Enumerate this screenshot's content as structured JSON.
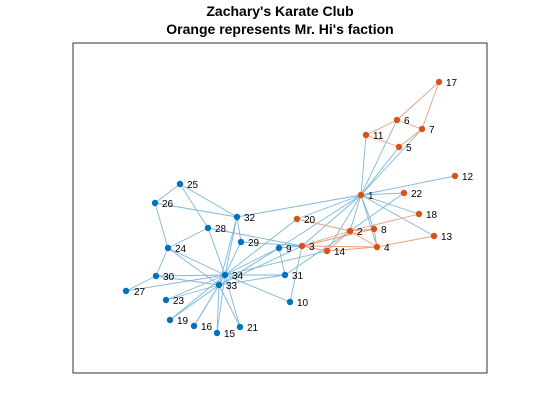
{
  "figure": {
    "title_line1": "Zachary's Karate Club",
    "title_line2": "Orange represents Mr. Hi's faction"
  },
  "colors": {
    "background": "#ffffff",
    "axes_border": "#000000",
    "edge_blue": "#7DB7DD",
    "edge_orange": "#E8A078",
    "node_blue": "#0072BD",
    "node_orange": "#D95319"
  },
  "chart_data": {
    "type": "network",
    "factions": {
      "orange": [
        1,
        2,
        3,
        4,
        5,
        6,
        7,
        8,
        11,
        12,
        13,
        14,
        17,
        18,
        20,
        22
      ],
      "blue": [
        9,
        10,
        15,
        16,
        19,
        21,
        23,
        24,
        25,
        26,
        27,
        28,
        29,
        30,
        31,
        32,
        33,
        34
      ]
    },
    "node_labels": [
      "17",
      "6",
      "7",
      "11",
      "5",
      "12",
      "22",
      "1",
      "18",
      "20",
      "2",
      "8",
      "13",
      "3",
      "9",
      "14",
      "4",
      "25",
      "26",
      "32",
      "28",
      "29",
      "24",
      "31",
      "30",
      "34",
      "27",
      "33",
      "10",
      "23",
      "19",
      "16",
      "21",
      "15"
    ],
    "edges": [
      [
        1,
        2
      ],
      [
        1,
        3
      ],
      [
        1,
        4
      ],
      [
        1,
        5
      ],
      [
        1,
        6
      ],
      [
        1,
        7
      ],
      [
        1,
        8
      ],
      [
        1,
        9
      ],
      [
        1,
        11
      ],
      [
        1,
        12
      ],
      [
        1,
        13
      ],
      [
        1,
        14
      ],
      [
        1,
        18
      ],
      [
        1,
        20
      ],
      [
        1,
        22
      ],
      [
        1,
        32
      ],
      [
        2,
        3
      ],
      [
        2,
        4
      ],
      [
        2,
        8
      ],
      [
        2,
        14
      ],
      [
        2,
        18
      ],
      [
        2,
        20
      ],
      [
        2,
        22
      ],
      [
        2,
        31
      ],
      [
        3,
        4
      ],
      [
        3,
        8
      ],
      [
        3,
        9
      ],
      [
        3,
        10
      ],
      [
        3,
        14
      ],
      [
        3,
        28
      ],
      [
        3,
        29
      ],
      [
        3,
        33
      ],
      [
        4,
        8
      ],
      [
        4,
        13
      ],
      [
        4,
        14
      ],
      [
        5,
        7
      ],
      [
        5,
        11
      ],
      [
        6,
        7
      ],
      [
        6,
        11
      ],
      [
        6,
        17
      ],
      [
        7,
        17
      ],
      [
        9,
        31
      ],
      [
        9,
        33
      ],
      [
        9,
        34
      ],
      [
        10,
        34
      ],
      [
        14,
        34
      ],
      [
        15,
        33
      ],
      [
        15,
        34
      ],
      [
        16,
        33
      ],
      [
        16,
        34
      ],
      [
        19,
        33
      ],
      [
        19,
        34
      ],
      [
        20,
        34
      ],
      [
        21,
        33
      ],
      [
        21,
        34
      ],
      [
        23,
        33
      ],
      [
        23,
        34
      ],
      [
        24,
        26
      ],
      [
        24,
        28
      ],
      [
        24,
        30
      ],
      [
        24,
        33
      ],
      [
        24,
        34
      ],
      [
        25,
        26
      ],
      [
        25,
        28
      ],
      [
        25,
        32
      ],
      [
        26,
        32
      ],
      [
        27,
        30
      ],
      [
        27,
        34
      ],
      [
        28,
        34
      ],
      [
        29,
        32
      ],
      [
        29,
        34
      ],
      [
        30,
        33
      ],
      [
        30,
        34
      ],
      [
        31,
        33
      ],
      [
        31,
        34
      ],
      [
        32,
        33
      ],
      [
        32,
        34
      ],
      [
        33,
        34
      ]
    ]
  }
}
